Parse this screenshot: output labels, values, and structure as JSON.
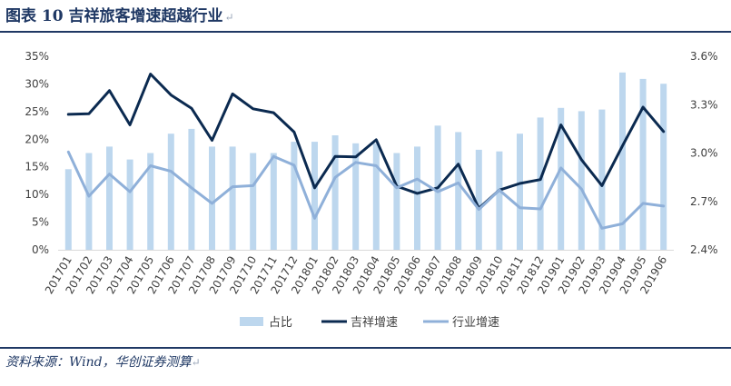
{
  "header": {
    "title": "图表 10  吉祥旅客增速超越行业",
    "return_mark": "↵"
  },
  "footer": {
    "source": "资料来源：Wind，华创证券测算",
    "return_mark": "↵"
  },
  "colors": {
    "bar": "#bdd7ee",
    "juneyao_line": "#0b2a50",
    "industry_line": "#8fb0d9",
    "axis": "#d9d9d9",
    "rule": "#1f3864"
  },
  "chart_data": {
    "type": "bar+line",
    "categories": [
      "201701",
      "201702",
      "201703",
      "201704",
      "201705",
      "201706",
      "201707",
      "201708",
      "201709",
      "201710",
      "201711",
      "201712",
      "201801",
      "201802",
      "201803",
      "201804",
      "201805",
      "201806",
      "201807",
      "201808",
      "201809",
      "201810",
      "201811",
      "201812",
      "201901",
      "201902",
      "201903",
      "201904",
      "201905",
      "201906"
    ],
    "series": [
      {
        "name": "占比",
        "kind": "bar",
        "axis": "right",
        "values": [
          2.9,
          3.0,
          3.04,
          2.96,
          3.0,
          3.12,
          3.15,
          3.04,
          3.04,
          3.0,
          3.0,
          3.07,
          3.07,
          3.11,
          3.06,
          3.06,
          3.0,
          3.04,
          3.17,
          3.13,
          3.02,
          3.01,
          3.12,
          3.22,
          3.28,
          3.26,
          3.27,
          3.5,
          3.46,
          3.43
        ]
      },
      {
        "name": "吉祥增速",
        "kind": "line",
        "axis": "left",
        "values": [
          24.5,
          24.6,
          28.8,
          22.6,
          31.8,
          28.0,
          25.6,
          19.8,
          28.2,
          25.5,
          24.8,
          21.3,
          11.2,
          16.9,
          16.8,
          19.9,
          11.5,
          10.2,
          11.2,
          15.5,
          7.5,
          10.8,
          12.0,
          12.7,
          22.6,
          16.3,
          11.6,
          18.8,
          25.8,
          21.4
        ]
      },
      {
        "name": "行业增速",
        "kind": "line",
        "axis": "left",
        "values": [
          17.7,
          9.7,
          13.7,
          10.5,
          15.2,
          14.2,
          11.2,
          8.4,
          11.4,
          11.6,
          16.9,
          15.3,
          5.7,
          13.1,
          15.8,
          15.2,
          11.2,
          12.8,
          10.5,
          12.1,
          7.3,
          10.8,
          7.6,
          7.4,
          14.8,
          11.0,
          3.9,
          4.7,
          8.4,
          7.9
        ]
      }
    ],
    "y_left": {
      "min": 0,
      "max": 35,
      "step": 5,
      "ticks": [
        "0%",
        "5%",
        "10%",
        "15%",
        "20%",
        "25%",
        "30%",
        "35%"
      ]
    },
    "y_right": {
      "min": 2.4,
      "max": 3.6,
      "step": 0.3,
      "ticks": [
        "2.4%",
        "2.7%",
        "3.0%",
        "3.3%",
        "3.6%"
      ]
    },
    "legend": {
      "position": "bottom",
      "items": [
        {
          "name": "占比",
          "kind": "bar"
        },
        {
          "name": "吉祥增速",
          "kind": "line"
        },
        {
          "name": "行业增速",
          "kind": "line"
        }
      ]
    },
    "grid": false
  }
}
